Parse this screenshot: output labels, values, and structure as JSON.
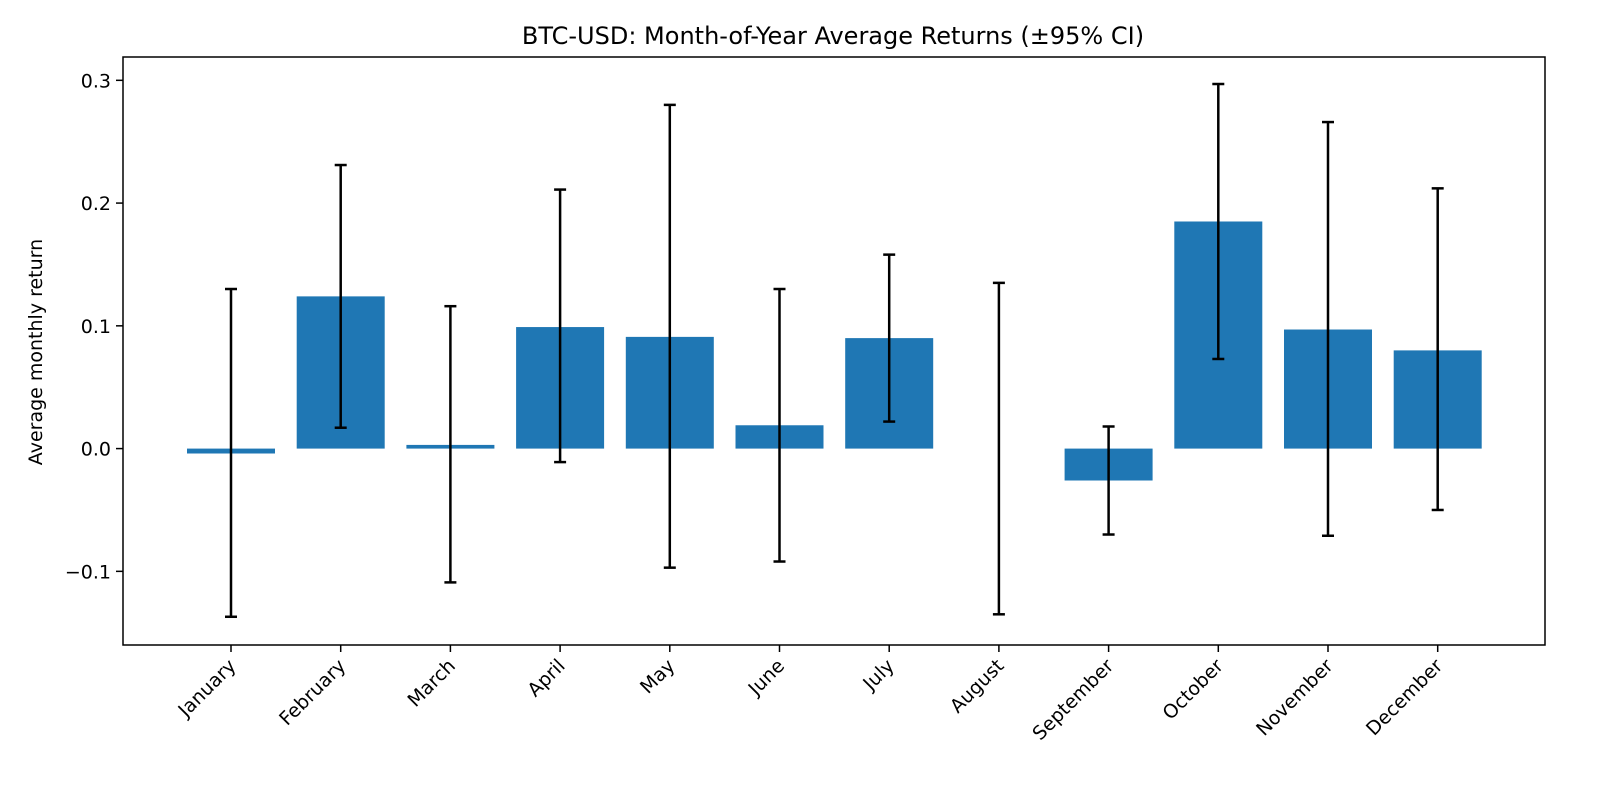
{
  "chart_data": {
    "type": "bar",
    "title": "BTC-USD: Month-of-Year Average Returns (±95% CI)",
    "xlabel": "",
    "ylabel": "Average monthly return",
    "categories": [
      "January",
      "February",
      "March",
      "April",
      "May",
      "June",
      "July",
      "August",
      "September",
      "October",
      "November",
      "December"
    ],
    "values": [
      -0.004,
      0.124,
      0.003,
      0.099,
      0.091,
      0.019,
      0.09,
      0.0,
      -0.026,
      0.185,
      0.097,
      0.08
    ],
    "ci_lower": [
      -0.137,
      0.017,
      -0.109,
      -0.011,
      -0.097,
      -0.092,
      0.022,
      -0.135,
      -0.07,
      0.073,
      -0.071,
      -0.05
    ],
    "ci_upper": [
      0.13,
      0.231,
      0.116,
      0.211,
      0.28,
      0.13,
      0.158,
      0.135,
      0.018,
      0.297,
      0.266,
      0.212
    ],
    "ylim": [
      -0.16,
      0.319
    ],
    "yticks": [
      -0.1,
      0.0,
      0.1,
      0.2,
      0.3
    ],
    "ytick_labels": [
      "−0.1",
      "0.0",
      "0.1",
      "0.2",
      "0.3"
    ],
    "bar_color": "#1f77b4",
    "errorbar_color": "#000000",
    "grid": false,
    "legend": "none"
  }
}
